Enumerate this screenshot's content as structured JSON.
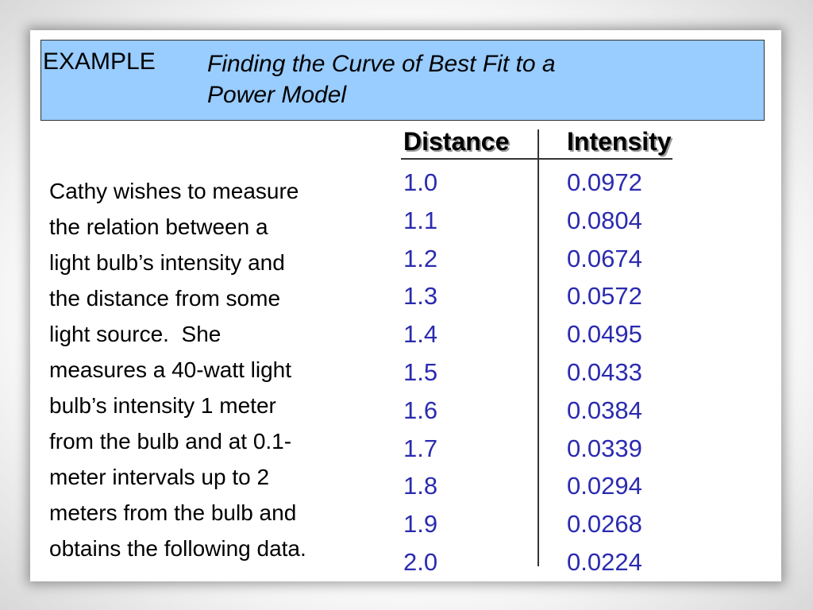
{
  "header": {
    "label": "EXAMPLE",
    "title_line1": "Finding the Curve of Best Fit to a",
    "title_line2": "Power Model"
  },
  "body": {
    "lines": [
      "Cathy wishes to measure",
      "the relation between a",
      "light bulb’s intensity and",
      "the distance from some",
      "light source.  She",
      "measures a 40-watt light",
      "bulb’s intensity 1 meter",
      "from the bulb and at 0.1-",
      "meter intervals up to 2",
      "meters from the bulb and",
      "obtains the following data."
    ]
  },
  "table": {
    "headers": [
      "Distance",
      "Intensity"
    ],
    "distance": [
      "1.0",
      "1.1",
      "1.2",
      "1.3",
      "1.4",
      "1.5",
      "1.6",
      "1.7",
      "1.8",
      "1.9",
      "2.0"
    ],
    "intensity": [
      "0.0972",
      "0.0804",
      "0.0674",
      "0.0572",
      "0.0495",
      "0.0433",
      "0.0384",
      "0.0339",
      "0.0294",
      "0.0268",
      "0.0224"
    ]
  },
  "colors": {
    "header_bg": "#99ccff",
    "value_text": "#2b2bb0"
  }
}
